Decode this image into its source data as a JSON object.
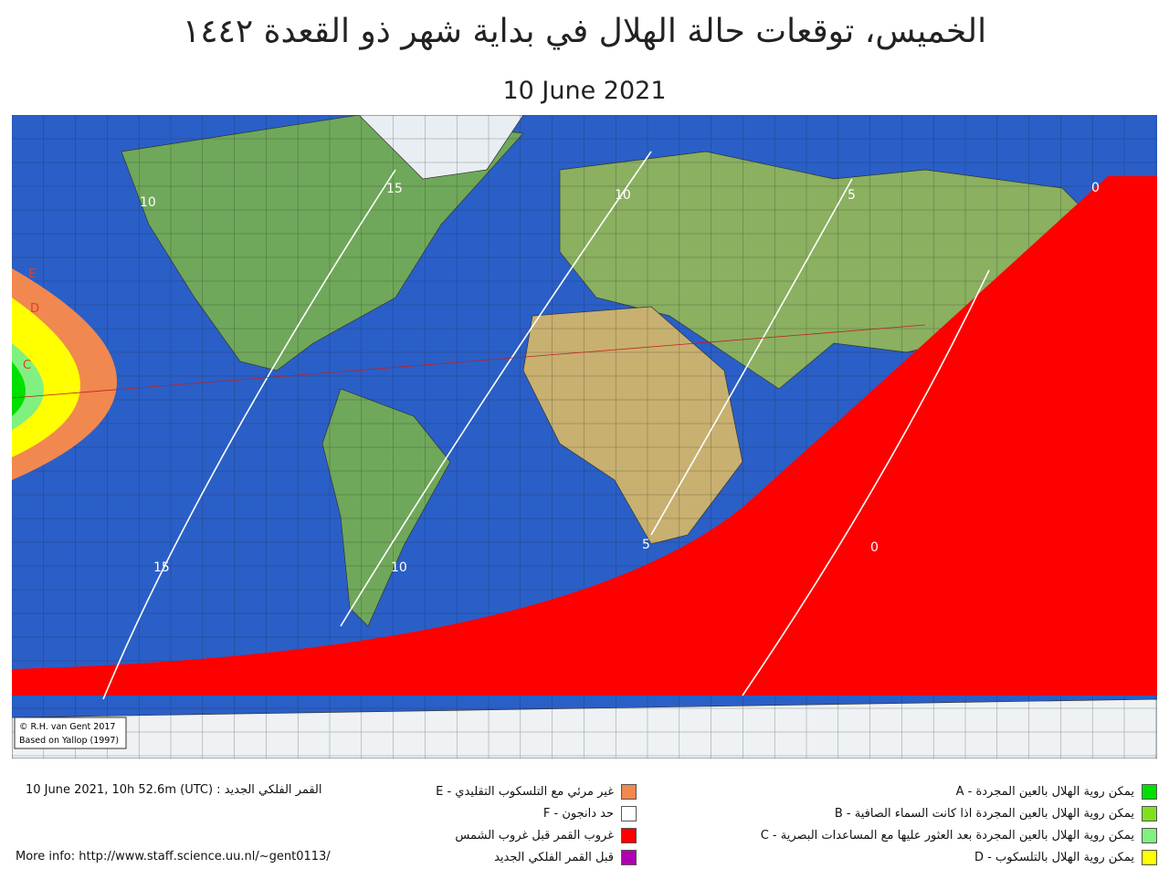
{
  "header": {
    "title": "الخميس، توقعات حالة الهلال في بداية شهر ذو القعدة ١٤٤٢",
    "date": "10 June 2021"
  },
  "map": {
    "contour_labels": [
      "15",
      "10",
      "5",
      "0",
      "10",
      "15",
      "10",
      "5",
      "0"
    ],
    "zone_labels": [
      "E",
      "D",
      "C"
    ],
    "credit": [
      "© R.H. van Gent 2017",
      "Based on Yallop (1997)"
    ]
  },
  "footer": {
    "new_moon": "10 June 2021, 10h 52.6m (UTC) : القمر الفلكي الجديد",
    "more_info": "More info: http://www.staff.science.uu.nl/~gent0113/"
  },
  "legend": {
    "left": [
      {
        "label": "E - غير مرئي مع التلسكوب التقليدي",
        "color": "#f08850"
      },
      {
        "label": "F - حد دانجون",
        "color": "#ffffff"
      },
      {
        "label": "غروب القمر قبل غروب الشمس",
        "color": "#ff0000"
      },
      {
        "label": "قبل القمر الفلكي الجديد",
        "color": "#b000b0"
      }
    ],
    "right": [
      {
        "label": "A - يمكن روية الهلال بالعين المجردة",
        "color": "#00e000"
      },
      {
        "label": "B - يمكن روية الهلال بالعين المجردة اذا كانت السماء الصافية",
        "color": "#80e020"
      },
      {
        "label": "C - يمكن روية الهلال بالعين المجردة بعد العثور عليها مع المساعدات البصرية",
        "color": "#80f080"
      },
      {
        "label": "D - يمكن روية الهلال بالتلسكوب",
        "color": "#ffff00"
      }
    ]
  }
}
